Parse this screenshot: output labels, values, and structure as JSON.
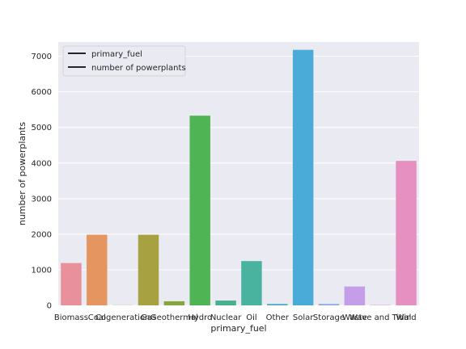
{
  "chart_data": {
    "type": "bar",
    "categories": [
      "Biomass",
      "Coal",
      "Cogeneration",
      "Gas",
      "Geothermal",
      "Hydro",
      "Nuclear",
      "Oil",
      "Other",
      "Solar",
      "Storage",
      "Waste",
      "Wave and Tidal",
      "Wind"
    ],
    "values": [
      1190,
      1985,
      5,
      1985,
      115,
      5330,
      135,
      1245,
      40,
      7180,
      40,
      530,
      10,
      4060
    ],
    "colors": [
      "#e8919c",
      "#e5955f",
      "#c3a14a",
      "#a7a142",
      "#85a63d",
      "#4fb454",
      "#48b08c",
      "#4ab3a0",
      "#4aacc2",
      "#4aaad8",
      "#8da8e0",
      "#c49ee8",
      "#e493d6",
      "#e68fc1"
    ],
    "xlabel": "primary_fuel",
    "ylabel": "number of powerplants",
    "ylim": [
      0,
      7400
    ],
    "yticks": [
      0,
      1000,
      2000,
      3000,
      4000,
      5000,
      6000,
      7000
    ],
    "grid": true,
    "legend": {
      "placement": "top-left",
      "entries": [
        "primary_fuel",
        "number of powerplants"
      ]
    },
    "style": {
      "plot_background": "#eaeaf2",
      "grid_color": "#ffffff",
      "legend_line_color": "#262626"
    }
  }
}
